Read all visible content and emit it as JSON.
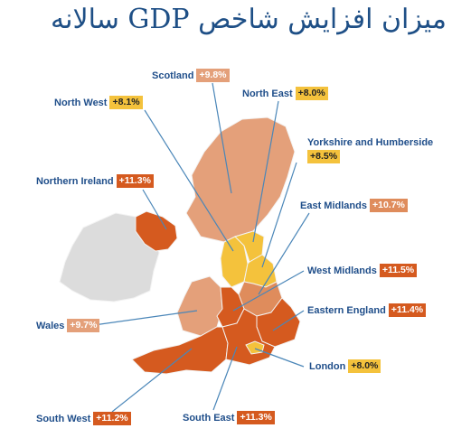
{
  "title": "میزان افزایش شاخص GDP سالانه",
  "colors": {
    "leader": "#4a86b8",
    "ireland": "#dcdcdc",
    "outline": "#f3f3f3"
  },
  "regions": {
    "scotland": {
      "name": "Scotland",
      "value": "+9.8%",
      "color": "#e4a07a",
      "text_color": "#ffffff"
    },
    "north_west": {
      "name": "North West",
      "value": "+8.1%",
      "color": "#f4c23c",
      "text_color": "#222222"
    },
    "north_east": {
      "name": "North East",
      "value": "+8.0%",
      "color": "#f4c23c",
      "text_color": "#222222"
    },
    "yorkshire": {
      "name": "Yorkshire and Humberside",
      "value": "+8.5%",
      "color": "#f4c23c",
      "text_color": "#222222"
    },
    "northern_ireland": {
      "name": "Northern Ireland",
      "value": "+11.3%",
      "color": "#d55a1f",
      "text_color": "#ffffff"
    },
    "east_midlands": {
      "name": "East Midlands",
      "value": "+10.7%",
      "color": "#df8c5c",
      "text_color": "#ffffff"
    },
    "west_midlands": {
      "name": "West Midlands",
      "value": "+11.5%",
      "color": "#d55a1f",
      "text_color": "#ffffff"
    },
    "wales": {
      "name": "Wales",
      "value": "+9.7%",
      "color": "#e4a07a",
      "text_color": "#ffffff"
    },
    "eastern_england": {
      "name": "Eastern England",
      "value": "+11.4%",
      "color": "#d55a1f",
      "text_color": "#ffffff"
    },
    "london": {
      "name": "London",
      "value": "+8.0%",
      "color": "#f4c23c",
      "text_color": "#222222"
    },
    "south_west": {
      "name": "South West",
      "value": "+11.2%",
      "color": "#d55a1f",
      "text_color": "#ffffff"
    },
    "south_east": {
      "name": "South East",
      "value": "+11.3%",
      "color": "#d55a1f",
      "text_color": "#ffffff"
    }
  }
}
